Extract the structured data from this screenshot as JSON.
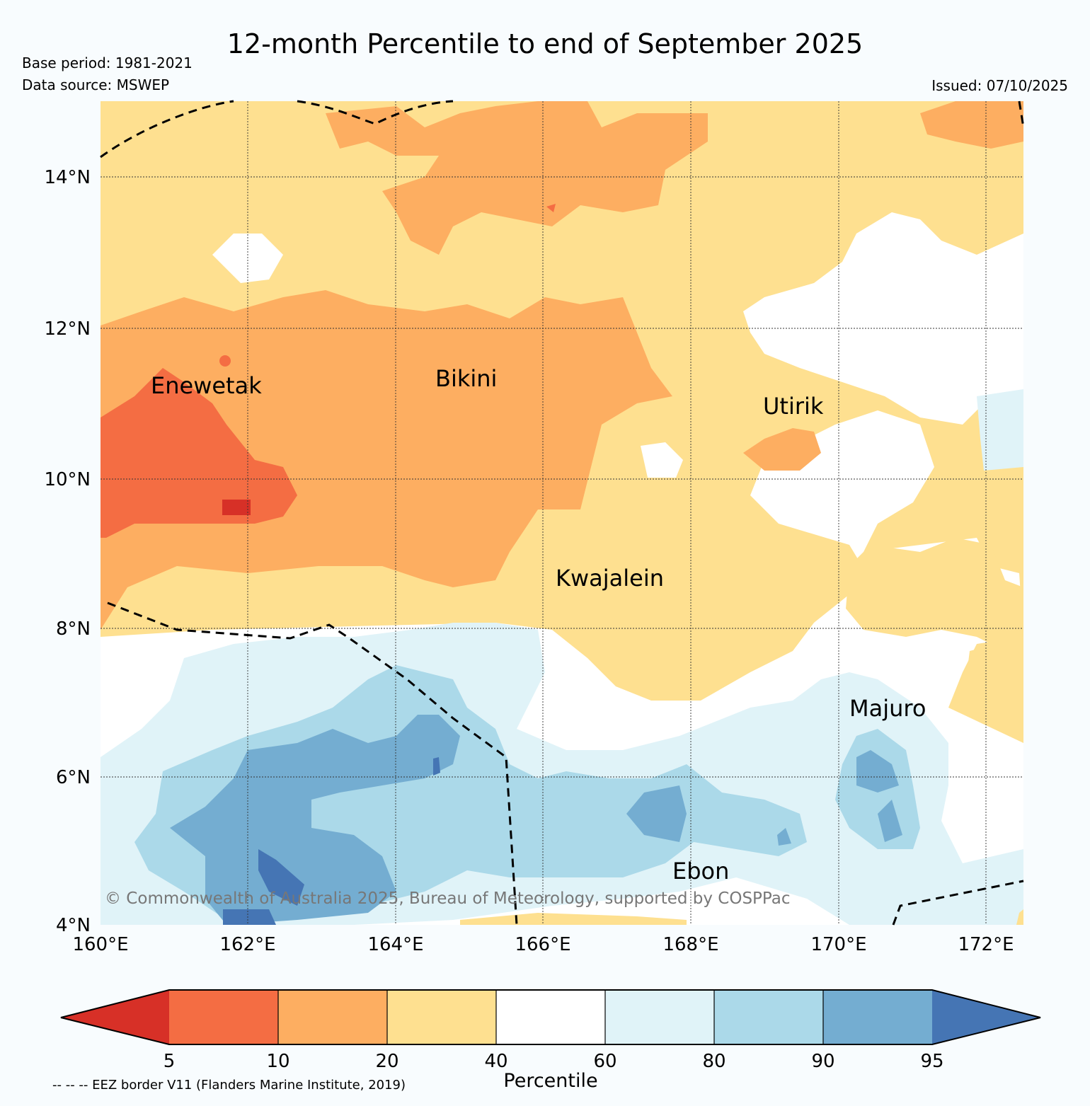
{
  "header": {
    "title": "12-month Percentile to end of September 2025",
    "base_period": "Base period: 1981-2021",
    "data_source": "Data source: MSWEP",
    "issued": "Issued: 07/10/2025"
  },
  "map": {
    "lat_labels": [
      "14°N",
      "12°N",
      "10°N",
      "8°N",
      "6°N",
      "4°N"
    ],
    "lon_labels": [
      "160°E",
      "162°E",
      "164°E",
      "166°E",
      "168°E",
      "170°E",
      "172°E"
    ],
    "places": {
      "enewetak": "Enewetak",
      "bikini": "Bikini",
      "utirik": "Utirik",
      "kwajalein": "Kwajalein",
      "majuro": "Majuro",
      "ebon": "Ebon"
    },
    "copyright": "© Commonwealth of Australia 2025, Bureau of Meteorology, supported by COSPPac"
  },
  "colorbar": {
    "ticks": [
      "5",
      "10",
      "20",
      "40",
      "60",
      "80",
      "90",
      "95"
    ],
    "label": "Percentile",
    "colors": [
      "#d73027",
      "#f46d43",
      "#fdae61",
      "#fee090",
      "#ffffff",
      "#e0f3f8",
      "#abd9e9",
      "#74add1",
      "#4575b4"
    ]
  },
  "eez_note": "-- -- -- EEZ border V11 (Flanders Marine Institute, 2019)"
}
